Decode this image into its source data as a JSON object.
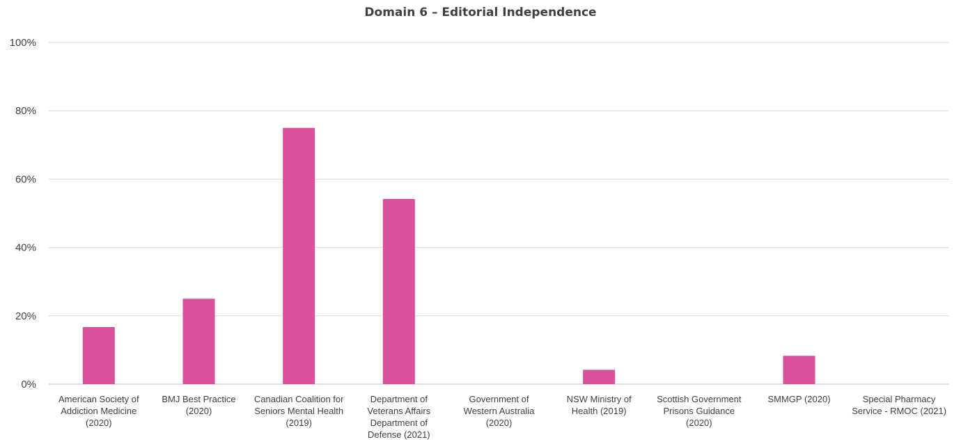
{
  "chart_data": {
    "type": "bar",
    "title": "Domain 6 – Editorial Independence",
    "xlabel": "",
    "ylabel": "",
    "ylim": [
      0,
      100
    ],
    "yticks": [
      "0%",
      "20%",
      "40%",
      "60%",
      "80%",
      "100%"
    ],
    "grid": true,
    "bar_color": "#d9519a",
    "categories": [
      [
        "American Society of",
        "Addiction Medicine",
        "(2020)"
      ],
      [
        "BMJ Best Practice",
        "(2020)"
      ],
      [
        "Canadian Coalition for",
        "Seniors Mental Health",
        "(2019)"
      ],
      [
        "Department of",
        "Veterans Affairs",
        "Department of",
        "Defense (2021)"
      ],
      [
        "Government of",
        "Western Australia",
        "(2020)"
      ],
      [
        "NSW Ministry of",
        "Health (2019)"
      ],
      [
        "Scottish Government",
        "Prisons Guidance",
        "(2020)"
      ],
      [
        "SMMGP (2020)"
      ],
      [
        "Special Pharmacy",
        "Service - RMOC (2021)"
      ]
    ],
    "values": [
      16.7,
      25,
      75,
      54.2,
      0,
      4.2,
      0,
      8.3,
      0
    ]
  }
}
